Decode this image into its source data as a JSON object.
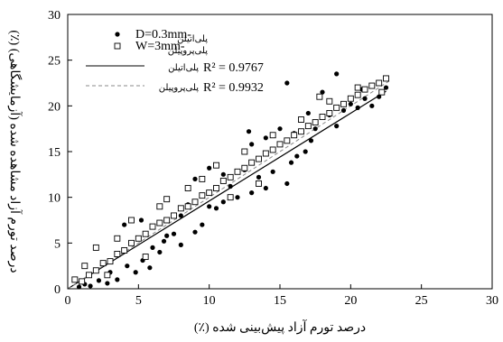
{
  "chart_data": {
    "type": "scatter",
    "xlabel": "درصد تورم آزاد پیش‌بینی شده (٪)",
    "ylabel": "درصد تورم آزاد مشاهده شده (آزمایشگاهی) (٪)",
    "xlim": [
      0,
      30
    ],
    "ylim": [
      0,
      30
    ],
    "x_ticks": [
      "0",
      "5",
      "10",
      "15",
      "20",
      "25",
      "30"
    ],
    "y_ticks": [
      "0",
      "5",
      "10",
      "15",
      "20",
      "25",
      "30"
    ],
    "legend_placement": "top-center",
    "grid": false,
    "series": [
      {
        "name": "D=0.3mm-",
        "name_sub": "پلی‌اتیلن",
        "marker": "filled-circle",
        "points": [
          [
            0.8,
            0.2
          ],
          [
            1.2,
            0.5
          ],
          [
            1.6,
            0.3
          ],
          [
            2.2,
            0.9
          ],
          [
            2.8,
            0.6
          ],
          [
            3.5,
            1.0
          ],
          [
            4.2,
            2.5
          ],
          [
            4.8,
            1.8
          ],
          [
            5.3,
            3.1
          ],
          [
            5.8,
            2.3
          ],
          [
            3.0,
            1.8
          ],
          [
            4.0,
            7.0
          ],
          [
            5.2,
            7.5
          ],
          [
            6.0,
            4.5
          ],
          [
            6.8,
            5.2
          ],
          [
            7.5,
            6.0
          ],
          [
            8.0,
            4.8
          ],
          [
            8.5,
            9.2
          ],
          [
            9.0,
            6.2
          ],
          [
            9.5,
            7.0
          ],
          [
            10.0,
            9.0
          ],
          [
            10.5,
            8.8
          ],
          [
            11.0,
            9.5
          ],
          [
            11.5,
            11.2
          ],
          [
            12.0,
            10.0
          ],
          [
            12.5,
            13.0
          ],
          [
            13.0,
            10.5
          ],
          [
            13.5,
            12.2
          ],
          [
            14.0,
            11.0
          ],
          [
            14.5,
            12.8
          ],
          [
            15.0,
            17.5
          ],
          [
            15.5,
            11.5
          ],
          [
            15.8,
            13.8
          ],
          [
            16.2,
            14.5
          ],
          [
            16.8,
            15.0
          ],
          [
            17.2,
            16.2
          ],
          [
            17.5,
            17.5
          ],
          [
            18.0,
            18.8
          ],
          [
            18.5,
            19.0
          ],
          [
            19.0,
            17.8
          ],
          [
            19.5,
            19.5
          ],
          [
            20.0,
            20.2
          ],
          [
            20.5,
            19.8
          ],
          [
            21.0,
            20.8
          ],
          [
            21.5,
            20.0
          ],
          [
            22.0,
            21.0
          ],
          [
            22.5,
            22.0
          ],
          [
            18.0,
            21.5
          ],
          [
            17.0,
            19.2
          ],
          [
            16.0,
            17.0
          ],
          [
            14.0,
            16.5
          ],
          [
            13.0,
            15.8
          ],
          [
            11.0,
            12.5
          ],
          [
            10.0,
            13.2
          ],
          [
            8.0,
            8.0
          ],
          [
            7.0,
            5.8
          ],
          [
            6.5,
            4.0
          ],
          [
            9.0,
            12.0
          ],
          [
            19.0,
            23.5
          ],
          [
            15.5,
            22.5
          ],
          [
            12.8,
            17.2
          ],
          [
            20.8,
            21.8
          ]
        ]
      },
      {
        "name": "W=3mm-",
        "name_sub": "پلی‌پروپیلن",
        "marker": "open-square",
        "points": [
          [
            0.5,
            1.0
          ],
          [
            1.0,
            0.8
          ],
          [
            1.5,
            1.5
          ],
          [
            2.0,
            2.0
          ],
          [
            2.5,
            2.8
          ],
          [
            3.0,
            3.0
          ],
          [
            3.5,
            3.8
          ],
          [
            4.0,
            4.2
          ],
          [
            4.5,
            5.0
          ],
          [
            5.0,
            5.5
          ],
          [
            5.5,
            6.0
          ],
          [
            6.0,
            6.8
          ],
          [
            6.5,
            7.2
          ],
          [
            7.0,
            7.5
          ],
          [
            7.5,
            8.0
          ],
          [
            8.0,
            8.8
          ],
          [
            8.5,
            9.0
          ],
          [
            9.0,
            9.5
          ],
          [
            9.5,
            10.2
          ],
          [
            10.0,
            10.5
          ],
          [
            10.5,
            11.0
          ],
          [
            11.0,
            11.8
          ],
          [
            11.5,
            12.2
          ],
          [
            12.0,
            12.8
          ],
          [
            12.5,
            13.2
          ],
          [
            13.0,
            13.8
          ],
          [
            13.5,
            14.2
          ],
          [
            14.0,
            14.8
          ],
          [
            14.5,
            15.2
          ],
          [
            15.0,
            15.8
          ],
          [
            15.5,
            16.2
          ],
          [
            16.0,
            16.8
          ],
          [
            16.5,
            17.2
          ],
          [
            17.0,
            17.8
          ],
          [
            17.5,
            18.2
          ],
          [
            18.0,
            18.8
          ],
          [
            18.5,
            19.2
          ],
          [
            19.0,
            19.8
          ],
          [
            19.5,
            20.2
          ],
          [
            20.0,
            20.8
          ],
          [
            20.5,
            21.2
          ],
          [
            21.0,
            21.8
          ],
          [
            21.5,
            22.2
          ],
          [
            22.0,
            22.5
          ],
          [
            22.5,
            23.0
          ],
          [
            3.5,
            5.5
          ],
          [
            4.5,
            7.5
          ],
          [
            6.5,
            9.0
          ],
          [
            8.5,
            11.0
          ],
          [
            10.5,
            13.5
          ],
          [
            12.5,
            15.0
          ],
          [
            14.5,
            16.8
          ],
          [
            16.5,
            18.5
          ],
          [
            18.5,
            20.5
          ],
          [
            2.0,
            4.5
          ],
          [
            5.5,
            3.5
          ],
          [
            7.0,
            9.8
          ],
          [
            9.5,
            12.0
          ],
          [
            11.5,
            10.0
          ],
          [
            13.5,
            11.5
          ],
          [
            1.2,
            2.5
          ],
          [
            2.8,
            1.5
          ],
          [
            20.5,
            22.0
          ],
          [
            22.2,
            21.5
          ],
          [
            17.8,
            21.0
          ]
        ]
      }
    ],
    "fits": [
      {
        "label": "پلی‌اتیلن",
        "r2": "R² = 0.9767",
        "style": "solid",
        "from": [
          0,
          0
        ],
        "to": [
          22.5,
          21.6
        ]
      },
      {
        "label": "پلی‌پروپیلن",
        "r2": "R² = 0.9932",
        "style": "dashed",
        "from": [
          0,
          0
        ],
        "to": [
          22.8,
          22.8
        ]
      }
    ]
  }
}
